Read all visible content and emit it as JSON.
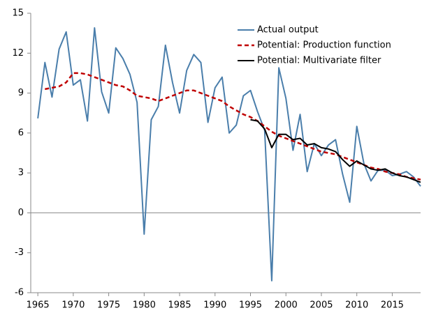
{
  "chart_data": {
    "type": "line",
    "x": [
      1965,
      1966,
      1967,
      1968,
      1969,
      1970,
      1971,
      1972,
      1973,
      1974,
      1975,
      1976,
      1977,
      1978,
      1979,
      1980,
      1981,
      1982,
      1983,
      1984,
      1985,
      1986,
      1987,
      1988,
      1989,
      1990,
      1991,
      1992,
      1993,
      1994,
      1995,
      1996,
      1997,
      1998,
      1999,
      2000,
      2001,
      2002,
      2003,
      2004,
      2005,
      2006,
      2007,
      2008,
      2009,
      2010,
      2011,
      2012,
      2013,
      2014,
      2015,
      2016,
      2017,
      2018,
      2019
    ],
    "series": [
      {
        "name": "Actual output",
        "color": "#4a7eab",
        "dashed": false,
        "values": [
          7.1,
          11.3,
          8.7,
          12.3,
          13.6,
          9.6,
          10.0,
          6.9,
          13.9,
          9.1,
          7.5,
          12.4,
          11.6,
          10.4,
          8.3,
          -1.6,
          7.0,
          8.0,
          12.6,
          9.8,
          7.5,
          10.7,
          11.9,
          11.3,
          6.8,
          9.4,
          10.2,
          6.0,
          6.6,
          8.8,
          9.2,
          7.6,
          6.2,
          -5.1,
          10.9,
          8.6,
          4.7,
          7.4,
          3.1,
          5.2,
          4.3,
          5.1,
          5.5,
          2.9,
          0.8,
          6.5,
          3.7,
          2.4,
          3.2,
          3.2,
          2.8,
          2.9,
          3.1,
          2.7,
          2.0
        ]
      },
      {
        "name": "Potential: Production function",
        "color": "#c00000",
        "dashed": true,
        "values": [
          null,
          9.3,
          9.4,
          9.5,
          9.8,
          10.5,
          10.5,
          10.4,
          10.2,
          10.0,
          9.8,
          9.6,
          9.5,
          9.2,
          8.8,
          8.7,
          8.6,
          8.4,
          8.6,
          8.8,
          9.0,
          9.2,
          9.2,
          9.0,
          8.8,
          8.6,
          8.4,
          8.0,
          7.7,
          7.4,
          7.2,
          6.9,
          6.5,
          6.1,
          5.8,
          5.6,
          5.4,
          5.2,
          5.0,
          4.8,
          4.6,
          4.5,
          4.4,
          4.2,
          4.0,
          3.8,
          3.6,
          3.4,
          3.3,
          3.1,
          3.0,
          2.9,
          2.7,
          2.6,
          2.5
        ]
      },
      {
        "name": "Potential: Multivariate filter",
        "color": "#000000",
        "dashed": false,
        "values": [
          null,
          null,
          null,
          null,
          null,
          null,
          null,
          null,
          null,
          null,
          null,
          null,
          null,
          null,
          null,
          null,
          null,
          null,
          null,
          null,
          null,
          null,
          null,
          null,
          null,
          null,
          null,
          null,
          null,
          null,
          7.0,
          6.9,
          6.3,
          4.9,
          5.9,
          5.9,
          5.5,
          5.6,
          5.1,
          5.2,
          4.9,
          4.8,
          4.6,
          4.0,
          3.5,
          3.9,
          3.6,
          3.3,
          3.2,
          3.3,
          3.0,
          2.8,
          2.7,
          2.5,
          2.3
        ]
      }
    ],
    "xlim": [
      1964,
      2019
    ],
    "xticks": [
      1965,
      1970,
      1975,
      1980,
      1985,
      1990,
      1995,
      2000,
      2005,
      2010,
      2015
    ],
    "ylim": [
      -6,
      15
    ],
    "yticks": [
      -6,
      -3,
      0,
      3,
      6,
      9,
      12,
      15
    ],
    "grid": false,
    "legend": "upper right"
  }
}
